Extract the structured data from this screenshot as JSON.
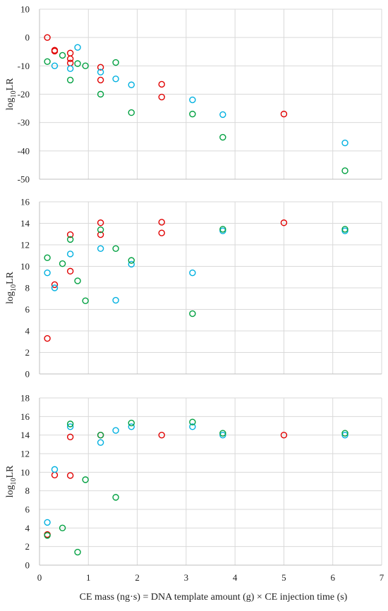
{
  "colors": {
    "red": "#e00000",
    "cyan": "#00b0e0",
    "green": "#00a040"
  },
  "chart_data": [
    {
      "type": "scatter",
      "ylabel": "log10LR",
      "ylim": [
        -50,
        10
      ],
      "yticks": [
        10,
        0,
        -10,
        -20,
        -30,
        -40,
        -50
      ],
      "xlim": [
        0,
        7
      ],
      "grid": true,
      "series": [
        {
          "color": "red",
          "points": [
            [
              0.16,
              0
            ],
            [
              0.31,
              -4.5
            ],
            [
              0.31,
              -4.8
            ],
            [
              0.63,
              -5.5
            ],
            [
              0.63,
              -7.5
            ],
            [
              0.63,
              -9
            ],
            [
              1.25,
              -10.5
            ],
            [
              1.25,
              -15
            ],
            [
              2.5,
              -16.5
            ],
            [
              2.5,
              -21
            ],
            [
              5.0,
              -27
            ]
          ]
        },
        {
          "color": "cyan",
          "points": [
            [
              0.31,
              -10
            ],
            [
              0.63,
              -11
            ],
            [
              0.78,
              -3.5
            ],
            [
              1.25,
              -12.2
            ],
            [
              1.56,
              -14.6
            ],
            [
              1.88,
              -16.7
            ],
            [
              3.13,
              -22
            ],
            [
              3.75,
              -27.2
            ],
            [
              6.25,
              -37.2
            ]
          ]
        },
        {
          "color": "green",
          "points": [
            [
              0.16,
              -8.5
            ],
            [
              0.47,
              -6.3
            ],
            [
              0.63,
              -15
            ],
            [
              0.78,
              -9.2
            ],
            [
              0.94,
              -10
            ],
            [
              1.25,
              -20
            ],
            [
              1.56,
              -8.8
            ],
            [
              1.88,
              -26.5
            ],
            [
              3.13,
              -27
            ],
            [
              3.75,
              -35.2
            ],
            [
              6.25,
              -47
            ]
          ]
        }
      ]
    },
    {
      "type": "scatter",
      "ylabel": "log10LR",
      "ylim": [
        0,
        16
      ],
      "yticks": [
        16,
        14,
        12,
        10,
        8,
        6,
        4,
        2,
        0
      ],
      "xlim": [
        0,
        7
      ],
      "grid": true,
      "series": [
        {
          "color": "red",
          "points": [
            [
              0.16,
              3.3
            ],
            [
              0.31,
              8.3
            ],
            [
              0.63,
              12.95
            ],
            [
              0.63,
              9.55
            ],
            [
              1.25,
              14.05
            ],
            [
              1.25,
              12.95
            ],
            [
              2.5,
              14.1
            ],
            [
              2.5,
              13.1
            ],
            [
              5.0,
              14.05
            ]
          ]
        },
        {
          "color": "cyan",
          "points": [
            [
              0.16,
              9.4
            ],
            [
              0.31,
              8.0
            ],
            [
              0.63,
              11.15
            ],
            [
              1.25,
              11.65
            ],
            [
              1.56,
              6.85
            ],
            [
              1.88,
              10.2
            ],
            [
              3.13,
              9.4
            ],
            [
              3.75,
              13.3
            ],
            [
              6.25,
              13.3
            ]
          ]
        },
        {
          "color": "green",
          "points": [
            [
              0.16,
              10.8
            ],
            [
              0.47,
              10.25
            ],
            [
              0.63,
              12.5
            ],
            [
              0.78,
              8.65
            ],
            [
              0.94,
              6.8
            ],
            [
              1.25,
              13.4
            ],
            [
              1.56,
              11.65
            ],
            [
              1.88,
              10.55
            ],
            [
              3.13,
              5.6
            ],
            [
              3.75,
              13.45
            ],
            [
              6.25,
              13.45
            ]
          ]
        }
      ]
    },
    {
      "type": "scatter",
      "ylabel": "log10LR",
      "ylim": [
        0,
        18
      ],
      "yticks": [
        18,
        16,
        14,
        12,
        10,
        8,
        6,
        4,
        2,
        0
      ],
      "xlim": [
        0,
        7
      ],
      "xticks": [
        0,
        1,
        2,
        3,
        4,
        5,
        6,
        7
      ],
      "xlabel": "CE mass (ng·s) = DNA template amount (g) × CE injection time (s)",
      "grid": true,
      "series": [
        {
          "color": "red",
          "points": [
            [
              0.16,
              3.3
            ],
            [
              0.31,
              9.7
            ],
            [
              0.63,
              13.8
            ],
            [
              0.63,
              9.65
            ],
            [
              1.25,
              14.0
            ],
            [
              2.5,
              14.0
            ],
            [
              5.0,
              14.0
            ]
          ]
        },
        {
          "color": "cyan",
          "points": [
            [
              0.16,
              4.6
            ],
            [
              0.31,
              10.3
            ],
            [
              0.63,
              14.9
            ],
            [
              1.25,
              13.2
            ],
            [
              1.56,
              14.5
            ],
            [
              1.88,
              14.9
            ],
            [
              3.13,
              14.9
            ],
            [
              3.75,
              14.0
            ],
            [
              6.25,
              14.0
            ]
          ]
        },
        {
          "color": "green",
          "points": [
            [
              0.16,
              3.2
            ],
            [
              0.47,
              4.0
            ],
            [
              0.63,
              15.2
            ],
            [
              0.78,
              1.4
            ],
            [
              0.94,
              9.2
            ],
            [
              1.25,
              14.0
            ],
            [
              1.56,
              7.3
            ],
            [
              1.88,
              15.3
            ],
            [
              3.13,
              15.4
            ],
            [
              3.75,
              14.2
            ],
            [
              6.25,
              14.2
            ]
          ]
        }
      ]
    }
  ]
}
